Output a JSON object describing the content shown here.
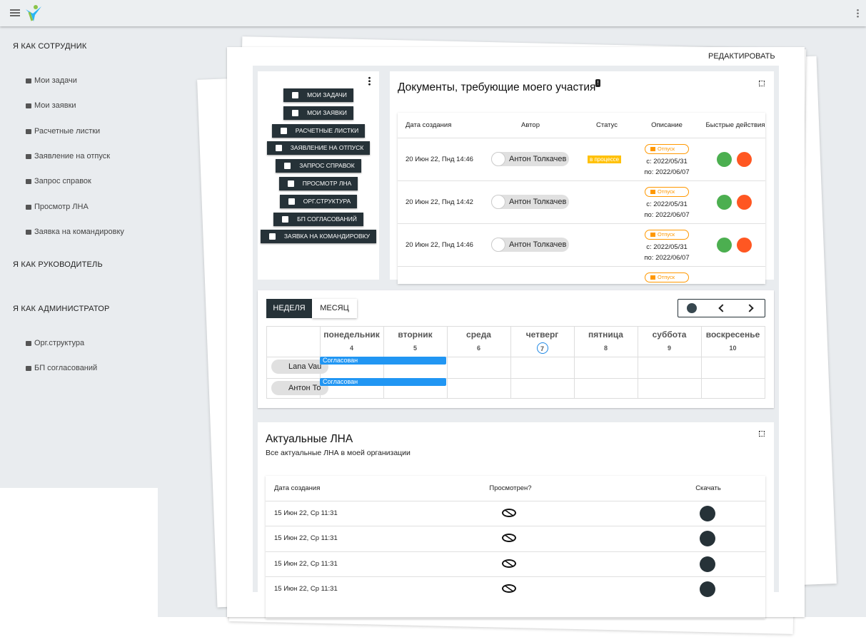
{
  "sidebar": {
    "sections": [
      {
        "title": "Я КАК СОТРУДНИК",
        "items": [
          "Мои задачи",
          "Мои заявки",
          "Расчетные листки",
          "Заявление на отпуск",
          "Запрос справок",
          "Просмотр ЛНА",
          "Заявка на командировку"
        ]
      },
      {
        "title": "Я КАК РУКОВОДИТЕЛЬ"
      },
      {
        "title": "Я КАК АДМИНИСТРАТОР",
        "items": [
          "Орг.структура",
          "БП согласований"
        ]
      }
    ]
  },
  "edit_button": "РЕДАКТИРОВАТЬ",
  "quick_actions": [
    "МОИ ЗАДАЧИ",
    "МОИ ЗАЯВКИ",
    "РАСЧЕТНЫЕ ЛИСТКИ",
    "ЗАЯВЛЕНИЕ НА ОТПУСК",
    "ЗАПРОС СПРАВОК",
    "ПРОСМОТР ЛНА",
    "ОРГ.СТРУКТУРА",
    "БП СОГЛАСОВАНИЙ",
    "ЗАЯВКА НА КОМАНДИРОВКУ"
  ],
  "documents": {
    "title": "Документы, требующие моего участия",
    "badge": "!",
    "columns": [
      "Дата создания",
      "Автор",
      "Статус",
      "Описание",
      "Быстрые действия"
    ],
    "rows": [
      {
        "date": "20 Июн 22, Пнд 14:46",
        "author": "Антон Толкачев",
        "status": "в процессе",
        "type": "Отпуск",
        "from": "с: 2022/05/31",
        "to": "по: 2022/06/07"
      },
      {
        "date": "20 Июн 22, Пнд 14:42",
        "author": "Антон Толкачев",
        "type": "Отпуск",
        "from": "с: 2022/05/31",
        "to": "по: 2022/06/07"
      },
      {
        "date": "20 Июн 22, Пнд 14:46",
        "author": "Антон Толкачев",
        "type": "Отпуск",
        "from": "с: 2022/05/31",
        "to": "по: 2022/06/07"
      },
      {
        "type": "Отпуск"
      }
    ]
  },
  "calendar": {
    "views": [
      "НЕДЕЛЯ",
      "МЕСЯЦ"
    ],
    "days": [
      {
        "name": "понедельник",
        "date": "4"
      },
      {
        "name": "вторник",
        "date": "5"
      },
      {
        "name": "среда",
        "date": "6"
      },
      {
        "name": "четверг",
        "date": "7"
      },
      {
        "name": "пятница",
        "date": "8"
      },
      {
        "name": "суббота",
        "date": "9"
      },
      {
        "name": "воскресенье",
        "date": "10"
      }
    ],
    "rows": [
      {
        "name": "Lana Vau",
        "event": "Согласован"
      },
      {
        "name": "Антон То",
        "event": "Согласован"
      }
    ]
  },
  "lna": {
    "title": "Актуальные ЛНА",
    "subtitle": "Все актуальные ЛНА в моей организации",
    "columns": [
      "Дата создания",
      "Просмотрен?",
      "Скачать"
    ],
    "rows": [
      {
        "date": "15 Июн 22, Ср 11:31"
      },
      {
        "date": "15 Июн 22, Ср 11:31"
      },
      {
        "date": "15 Июн 22, Ср 11:31"
      },
      {
        "date": "15 Июн 22, Ср 11:31"
      }
    ]
  }
}
